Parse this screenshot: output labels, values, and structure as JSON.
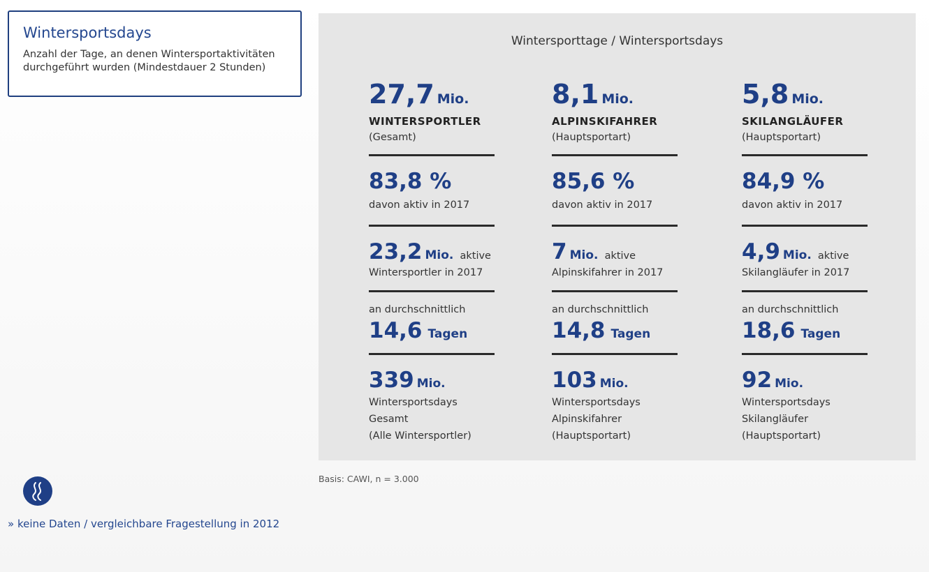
{
  "definition": {
    "title": "Wintersportsdays",
    "line1": "Anzahl der Tage, an denen Wintersportaktivitäten",
    "line2": "durchgeführt wurden (Mindestdauer 2 Stunden)"
  },
  "panel": {
    "title": "Wintersporttage / Wintersportsdays",
    "columns": [
      {
        "total": "27,7",
        "total_unit": "Mio.",
        "group": "WINTERSPORTLER",
        "group_note": "(Gesamt)",
        "active_pct": "83,8 %",
        "active_label": "davon aktiv in 2017",
        "active_count": "23,2",
        "active_unit": "Mio.",
        "active_suffix": "aktive",
        "active_group": "Wintersportler in 2017",
        "avg_label": "an durchschnittlich",
        "days": "14,6",
        "days_unit": "Tagen",
        "sportsdays": "339",
        "sportsdays_unit": "Mio.",
        "sd_line1": "Wintersportsdays",
        "sd_line2": "Gesamt",
        "sd_line3": "(Alle Wintersportler)"
      },
      {
        "total": "8,1",
        "total_unit": "Mio.",
        "group": "ALPINSKIFAHRER",
        "group_note": "(Hauptsportart)",
        "active_pct": "85,6 %",
        "active_label": "davon aktiv in 2017",
        "active_count": "7",
        "active_unit": "Mio.",
        "active_suffix": "aktive",
        "active_group": "Alpinskifahrer in 2017",
        "avg_label": "an durchschnittlich",
        "days": "14,8",
        "days_unit": "Tagen",
        "sportsdays": "103",
        "sportsdays_unit": "Mio.",
        "sd_line1": "Wintersportsdays",
        "sd_line2": "Alpinskifahrer",
        "sd_line3": "(Hauptsportart)"
      },
      {
        "total": "5,8",
        "total_unit": "Mio.",
        "group": "SKILANGLÄUFER",
        "group_note": "(Hauptsportart)",
        "active_pct": "84,9 %",
        "active_label": "davon aktiv in 2017",
        "active_count": "4,9",
        "active_unit": "Mio.",
        "active_suffix": "aktive",
        "active_group": "Skilangläufer in 2017",
        "avg_label": "an durchschnittlich",
        "days": "18,6",
        "days_unit": "Tagen",
        "sportsdays": "92",
        "sportsdays_unit": "Mio.",
        "sd_line1": "Wintersportsdays",
        "sd_line2": "Skilangläufer",
        "sd_line3": "(Hauptsportart)"
      }
    ]
  },
  "note": "Basis: CAWI, n = 3.000",
  "footer": "» keine Daten / vergleichbare Fragestellung in 2012",
  "icons": {
    "logo": "wave-logo-icon"
  },
  "colors": {
    "accent": "#1f3f86",
    "panel_bg": "#e6e6e6",
    "rule": "#2a2a2a"
  }
}
